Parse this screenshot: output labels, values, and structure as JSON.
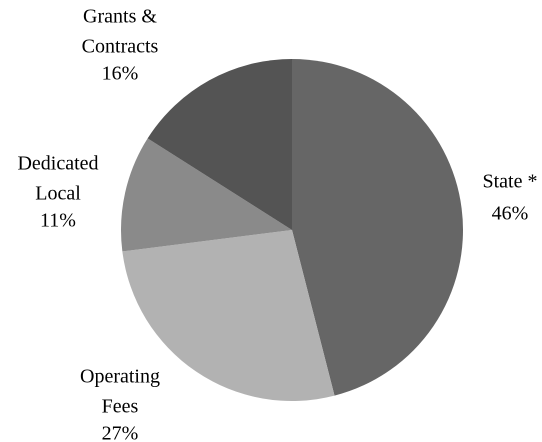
{
  "chart_data": {
    "type": "pie",
    "categories": [
      [
        "State *"
      ],
      [
        "Operating",
        "Fees"
      ],
      [
        "Dedicated",
        "Local"
      ],
      [
        "Grants &",
        "Contracts"
      ]
    ],
    "values": [
      46,
      27,
      11,
      16
    ],
    "value_labels": [
      "46%",
      "27%",
      "11%",
      "16%"
    ],
    "colors": [
      "#666666",
      "#b2b2b2",
      "#8a8a8a",
      "#545454"
    ]
  }
}
